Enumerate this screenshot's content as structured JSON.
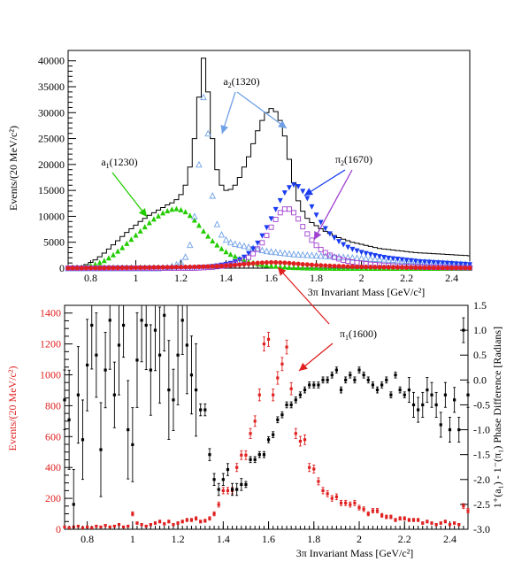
{
  "chart_data": [
    {
      "type": "line",
      "xlabel": "3π Invariant Mass  [GeV/c²]",
      "ylabel": "Events/(20 MeV/c²)",
      "xlim": [
        0.7,
        2.48
      ],
      "ylim": [
        0,
        42000
      ],
      "xticks": [
        "0.8",
        "1",
        "1.2",
        "1.4",
        "1.6",
        "1.8",
        "2",
        "2.2",
        "2.4"
      ],
      "yticks": [
        "0",
        "5000",
        "10000",
        "15000",
        "20000",
        "25000",
        "30000",
        "35000",
        "40000"
      ],
      "x": [
        0.7,
        0.72,
        0.74,
        0.76,
        0.78,
        0.8,
        0.82,
        0.84,
        0.86,
        0.88,
        0.9,
        0.92,
        0.94,
        0.96,
        0.98,
        1.0,
        1.02,
        1.04,
        1.06,
        1.08,
        1.1,
        1.12,
        1.14,
        1.16,
        1.18,
        1.2,
        1.22,
        1.24,
        1.26,
        1.28,
        1.3,
        1.32,
        1.34,
        1.36,
        1.38,
        1.4,
        1.42,
        1.44,
        1.46,
        1.48,
        1.5,
        1.52,
        1.54,
        1.56,
        1.58,
        1.6,
        1.62,
        1.64,
        1.66,
        1.68,
        1.7,
        1.72,
        1.74,
        1.76,
        1.78,
        1.8,
        1.82,
        1.84,
        1.86,
        1.88,
        1.9,
        1.92,
        1.94,
        1.96,
        1.98,
        2.0,
        2.02,
        2.04,
        2.06,
        2.08,
        2.1,
        2.12,
        2.14,
        2.16,
        2.18,
        2.2,
        2.22,
        2.24,
        2.26,
        2.28,
        2.3,
        2.32,
        2.34,
        2.36,
        2.38,
        2.4,
        2.42,
        2.44,
        2.46,
        2.48
      ],
      "series": [
        {
          "name": "",
          "color": "#000000",
          "style": "histogram",
          "values": [
            0,
            100,
            200,
            400,
            700,
            1100,
            1600,
            2200,
            2900,
            3700,
            4500,
            5300,
            6100,
            6900,
            7600,
            8300,
            9000,
            9600,
            10200,
            10700,
            11200,
            11700,
            12200,
            12600,
            13200,
            14200,
            16000,
            19500,
            25000,
            33000,
            40500,
            34000,
            25000,
            19000,
            16000,
            15000,
            15200,
            16000,
            17500,
            19500,
            21500,
            24000,
            26500,
            28500,
            30000,
            30800,
            30200,
            28500,
            25500,
            21000,
            16500,
            13000,
            11000,
            9600,
            8800,
            8200,
            7600,
            7100,
            6700,
            6300,
            5900,
            5600,
            5300,
            5000,
            4800,
            4600,
            4400,
            4200,
            4000,
            3800,
            3700,
            3600,
            3500,
            3400,
            3300,
            3200,
            3100,
            3000,
            2950,
            2900,
            2850,
            2800,
            2750,
            2700,
            2650,
            2600,
            2550,
            2500,
            2450,
            2400
          ]
        },
        {
          "name": "a₁(1230)",
          "color": "#22cc00",
          "style": "filled-triangle-up",
          "values": [
            0,
            50,
            100,
            200,
            350,
            550,
            800,
            1100,
            1500,
            2000,
            2600,
            3300,
            4000,
            4800,
            5600,
            6400,
            7200,
            8000,
            8800,
            9500,
            10100,
            10700,
            11100,
            11400,
            11500,
            11300,
            10900,
            10200,
            9300,
            8300,
            7200,
            6200,
            5300,
            4500,
            3800,
            3200,
            2700,
            2300,
            1900,
            1600,
            1300,
            1100,
            900,
            750,
            600,
            500,
            400,
            320,
            250,
            200,
            150,
            120,
            90,
            70,
            50,
            40,
            30,
            20,
            15,
            10,
            8,
            6,
            5,
            4,
            3,
            2,
            2,
            1,
            1,
            1,
            0,
            0,
            0,
            0,
            0,
            0,
            0,
            0,
            0,
            0,
            0,
            0,
            0,
            0,
            0,
            0,
            0,
            0,
            0,
            0
          ]
        },
        {
          "name": "a₂(1320)",
          "color": "#6fa0e6",
          "style": "open-triangle-up",
          "values": [
            0,
            0,
            0,
            0,
            0,
            0,
            0,
            0,
            0,
            0,
            0,
            0,
            0,
            0,
            0,
            0,
            0,
            0,
            0,
            0,
            0,
            100,
            200,
            400,
            700,
            1200,
            2200,
            4500,
            10000,
            20000,
            33000,
            26000,
            14000,
            8500,
            6500,
            5500,
            5000,
            4700,
            4500,
            4300,
            4100,
            3900,
            3700,
            3500,
            3300,
            3200,
            3100,
            3000,
            2900,
            2800,
            2700,
            2650,
            2600,
            2550,
            2500,
            2450,
            2400,
            2350,
            2300,
            2250,
            2200,
            2150,
            2100,
            2050,
            2000,
            1950,
            1900,
            1850,
            1800,
            1750,
            1700,
            1650,
            1600,
            1550,
            1500,
            1450,
            1400,
            1350,
            1300,
            1250,
            1200,
            1150,
            1100,
            1050,
            1000,
            950,
            900,
            850,
            800,
            750
          ]
        },
        {
          "name": "π₂(1670) 1",
          "color": "#1a3cf0",
          "style": "filled-triangle-down",
          "values": [
            0,
            0,
            0,
            0,
            0,
            0,
            0,
            0,
            0,
            0,
            0,
            0,
            0,
            0,
            0,
            0,
            0,
            0,
            0,
            0,
            0,
            0,
            0,
            0,
            0,
            0,
            0,
            0,
            50,
            100,
            150,
            200,
            300,
            400,
            550,
            700,
            900,
            1200,
            1600,
            2100,
            2800,
            3700,
            4800,
            6200,
            7800,
            9500,
            11300,
            13000,
            14500,
            15500,
            16000,
            15700,
            14800,
            13400,
            11800,
            10200,
            8800,
            7600,
            6600,
            5800,
            5100,
            4500,
            4000,
            3600,
            3300,
            3000,
            2800,
            2600,
            2400,
            2200,
            2050,
            1900,
            1800,
            1700,
            1600,
            1500,
            1400,
            1300,
            1200,
            1150,
            1100,
            1050,
            1000,
            950,
            900,
            850,
            800,
            750,
            700,
            650
          ]
        },
        {
          "name": "π₂(1670) 2",
          "color": "#a040d0",
          "style": "open-square",
          "values": [
            0,
            0,
            0,
            0,
            0,
            0,
            0,
            0,
            0,
            0,
            0,
            0,
            0,
            0,
            0,
            0,
            0,
            0,
            0,
            0,
            0,
            0,
            0,
            0,
            0,
            0,
            0,
            0,
            0,
            50,
            100,
            150,
            200,
            300,
            400,
            500,
            700,
            900,
            1200,
            1600,
            2100,
            2800,
            3700,
            4900,
            6300,
            7900,
            9400,
            10700,
            11400,
            11400,
            10700,
            9500,
            8000,
            6600,
            5400,
            4400,
            3600,
            3000,
            2500,
            2100,
            1800,
            1550,
            1350,
            1200,
            1050,
            950,
            850,
            750,
            680,
            610,
            550,
            500,
            450,
            400,
            360,
            330,
            300,
            270,
            240,
            220,
            200,
            180,
            160,
            140,
            120,
            100,
            90,
            80,
            70,
            60
          ]
        },
        {
          "name": "π₁(1600)",
          "color": "#e02020",
          "style": "filled-circle",
          "values": [
            20,
            20,
            20,
            20,
            30,
            30,
            30,
            40,
            40,
            50,
            50,
            60,
            70,
            80,
            90,
            100,
            110,
            120,
            130,
            150,
            160,
            170,
            180,
            190,
            200,
            210,
            220,
            240,
            260,
            280,
            300,
            320,
            350,
            380,
            420,
            470,
            530,
            600,
            680,
            760,
            850,
            930,
            1000,
            1060,
            1100,
            1120,
            1110,
            1080,
            1030,
            970,
            900,
            830,
            760,
            700,
            640,
            590,
            540,
            500,
            460,
            420,
            390,
            360,
            330,
            300,
            280,
            260,
            240,
            220,
            200,
            190,
            180,
            170,
            160,
            150,
            140,
            130,
            120,
            110,
            100,
            95,
            90,
            85,
            80,
            75,
            70,
            65,
            60,
            55,
            50,
            45
          ]
        }
      ],
      "annotations": [
        "a₂(1320)",
        "a₁(1230)",
        "π₂(1670)",
        "π₁(1600)"
      ]
    },
    {
      "type": "scatter",
      "xlabel": "3π Invariant Mass  [GeV/c²]",
      "ylabel": "Events/(20 MeV/c²)",
      "y2label": "1⁺(a₁) - 1⁻(π₁) Phase Difference [Radians]",
      "xlim": [
        0.7,
        2.48
      ],
      "ylim": [
        0,
        1450
      ],
      "y2lim": [
        -3.0,
        1.5
      ],
      "xticks": [
        "0.8",
        "1",
        "1.2",
        "1.4",
        "1.6",
        "1.8",
        "2",
        "2.2",
        "2.4"
      ],
      "yticks": [
        "0",
        "200",
        "400",
        "600",
        "800",
        "1000",
        "1200",
        "1400"
      ],
      "y2ticks": [
        "-3.0",
        "-2.5",
        "-2.0",
        "-1.5",
        "-1.0",
        "-0.5",
        "0.0",
        "0.5",
        "1.0",
        "1.5"
      ],
      "series": [
        {
          "name": "",
          "color": "#e02020",
          "axis": "left",
          "x": [
            0.7,
            0.72,
            0.74,
            0.76,
            0.78,
            0.8,
            0.82,
            0.84,
            0.86,
            0.88,
            0.9,
            0.92,
            0.94,
            0.96,
            0.98,
            1.0,
            1.02,
            1.04,
            1.06,
            1.08,
            1.1,
            1.12,
            1.14,
            1.16,
            1.18,
            1.2,
            1.22,
            1.24,
            1.26,
            1.28,
            1.3,
            1.32,
            1.34,
            1.36,
            1.38,
            1.4,
            1.42,
            1.44,
            1.46,
            1.48,
            1.5,
            1.52,
            1.54,
            1.56,
            1.58,
            1.6,
            1.62,
            1.64,
            1.66,
            1.68,
            1.7,
            1.72,
            1.74,
            1.76,
            1.78,
            1.8,
            1.82,
            1.84,
            1.86,
            1.88,
            1.9,
            1.92,
            1.94,
            1.96,
            1.98,
            2.0,
            2.02,
            2.04,
            2.06,
            2.08,
            2.1,
            2.12,
            2.14,
            2.16,
            2.18,
            2.2,
            2.22,
            2.24,
            2.26,
            2.28,
            2.3,
            2.32,
            2.34,
            2.36,
            2.38,
            2.4,
            2.42,
            2.44,
            2.46,
            2.48
          ],
          "y": [
            15,
            10,
            15,
            20,
            10,
            15,
            10,
            20,
            15,
            25,
            15,
            20,
            30,
            15,
            20,
            100,
            40,
            30,
            20,
            30,
            40,
            50,
            35,
            50,
            30,
            40,
            50,
            60,
            60,
            70,
            50,
            55,
            70,
            100,
            160,
            250,
            250,
            250,
            400,
            480,
            480,
            620,
            700,
            870,
            1200,
            1230,
            870,
            980,
            1070,
            1180,
            910,
            620,
            570,
            580,
            400,
            390,
            310,
            250,
            230,
            200,
            210,
            170,
            170,
            160,
            170,
            140,
            130,
            100,
            120,
            120,
            90,
            80,
            80,
            60,
            70,
            70,
            60,
            60,
            60,
            40,
            50,
            40,
            30,
            40,
            50,
            30,
            40,
            30,
            150,
            120
          ]
        },
        {
          "name": "",
          "color": "#000000",
          "axis": "right",
          "x": [
            0.7,
            0.72,
            0.74,
            0.76,
            0.78,
            0.8,
            0.82,
            0.84,
            0.86,
            0.88,
            0.9,
            0.92,
            0.94,
            0.96,
            0.98,
            1.0,
            1.02,
            1.04,
            1.06,
            1.08,
            1.1,
            1.12,
            1.14,
            1.16,
            1.18,
            1.2,
            1.22,
            1.24,
            1.26,
            1.28,
            1.3,
            1.32,
            1.34,
            1.36,
            1.38,
            1.4,
            1.42,
            1.44,
            1.46,
            1.48,
            1.5,
            1.52,
            1.54,
            1.56,
            1.58,
            1.6,
            1.62,
            1.64,
            1.66,
            1.68,
            1.7,
            1.72,
            1.74,
            1.76,
            1.78,
            1.8,
            1.82,
            1.84,
            1.86,
            1.88,
            1.9,
            1.92,
            1.94,
            1.96,
            1.98,
            2.0,
            2.02,
            2.04,
            2.06,
            2.08,
            2.1,
            2.12,
            2.14,
            2.16,
            2.18,
            2.2,
            2.22,
            2.24,
            2.26,
            2.28,
            2.3,
            2.32,
            2.34,
            2.36,
            2.38,
            2.4,
            2.42,
            2.44,
            2.46,
            2.48
          ],
          "y": [
            -0.4,
            -0.8,
            -2.5,
            -0.3,
            -1.2,
            0.3,
            1.1,
            0.5,
            -1.4,
            0.2,
            1.2,
            -0.3,
            0.7,
            1.1,
            -1.0,
            -1.3,
            0.4,
            1.2,
            1.1,
            0.2,
            1.0,
            0.5,
            1.3,
            -0.2,
            -0.4,
            0.5,
            1.2,
            0.7,
            0.1,
            -0.2,
            -0.6,
            -0.6,
            -1.5,
            -2.0,
            -2.2,
            -2.0,
            -1.8,
            -2.2,
            -2.2,
            -2.1,
            -2.1,
            -1.6,
            -1.6,
            -1.5,
            -1.5,
            -1.2,
            -1.1,
            -0.8,
            -0.7,
            -0.5,
            -0.5,
            -0.4,
            -0.3,
            -0.2,
            -0.1,
            -0.1,
            -0.1,
            0.0,
            0.0,
            0.1,
            0.2,
            -0.2,
            0.0,
            0.1,
            0.0,
            0.2,
            0.1,
            0.0,
            -0.1,
            -0.2,
            -0.1,
            0.0,
            -0.3,
            0.1,
            -0.2,
            -0.3,
            -0.2,
            -0.5,
            -0.6,
            -0.5,
            -0.2,
            -0.3,
            -0.5,
            -0.9,
            -0.3,
            -1.0,
            -0.4,
            -1.0,
            1.0,
            -0.3
          ]
        }
      ],
      "annotations": [
        "π₁(1600)"
      ]
    }
  ]
}
